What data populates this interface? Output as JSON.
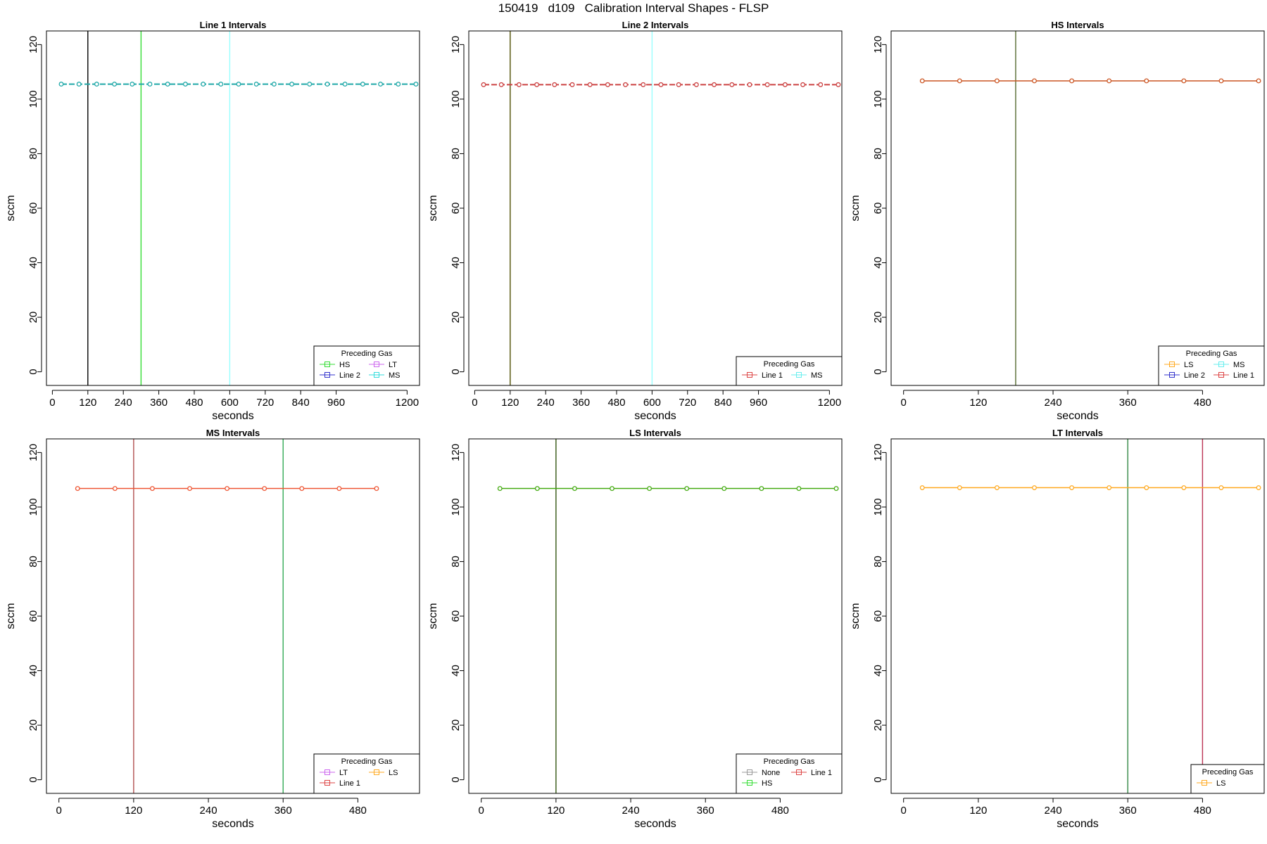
{
  "page_title": "150419   d109   Calibration Interval Shapes - FLSP",
  "chart_data": [
    {
      "type": "line",
      "title": "Line 1 Intervals",
      "xlabel": "seconds",
      "ylabel": "sccm",
      "xlim": [
        -20,
        1242
      ],
      "ylim": [
        -5,
        125
      ],
      "xticks": [
        0,
        120,
        240,
        360,
        480,
        600,
        720,
        840,
        960,
        1200
      ],
      "yticks": [
        0,
        20,
        40,
        60,
        80,
        100,
        120
      ],
      "legend": {
        "title": "Preceding Gas",
        "position": "bottom-right",
        "cols": 2,
        "entries": [
          {
            "label": "HS",
            "color": "#33dd33"
          },
          {
            "label": "LT",
            "color": "#cc66ee"
          },
          {
            "label": "Line 2",
            "color": "#3333cc"
          },
          {
            "label": "MS",
            "color": "#33dddd"
          }
        ]
      },
      "vlines": [
        {
          "x": 120,
          "color": "#000000"
        },
        {
          "x": 300,
          "color": "#33dd33"
        },
        {
          "x": 600,
          "color": "#99ffff"
        }
      ],
      "series": [
        {
          "color": "#1fa8a8",
          "dashed": true,
          "x": [
            30,
            90,
            150,
            210,
            270,
            330,
            390,
            450,
            510,
            570,
            630,
            690,
            750,
            810,
            870,
            930,
            990,
            1050,
            1110,
            1170,
            1230
          ],
          "y": [
            105.5,
            105.5,
            105.5,
            105.5,
            105.5,
            105.5,
            105.5,
            105.5,
            105.5,
            105.5,
            105.5,
            105.5,
            105.5,
            105.5,
            105.5,
            105.5,
            105.5,
            105.5,
            105.5,
            105.5,
            105.5
          ]
        }
      ]
    },
    {
      "type": "line",
      "title": "Line 2 Intervals",
      "xlabel": "seconds",
      "ylabel": "sccm",
      "xlim": [
        -20,
        1242
      ],
      "ylim": [
        -5,
        125
      ],
      "xticks": [
        0,
        120,
        240,
        360,
        480,
        600,
        720,
        840,
        960,
        1200
      ],
      "yticks": [
        0,
        20,
        40,
        60,
        80,
        100,
        120
      ],
      "legend": {
        "title": "Preceding Gas",
        "position": "bottom-right",
        "cols": 2,
        "entries": [
          {
            "label": "Line 1",
            "color": "#dd4444"
          },
          {
            "label": "MS",
            "color": "#66eeee"
          }
        ]
      },
      "vlines": [
        {
          "x": 120,
          "color": "#4d4d00"
        },
        {
          "x": 600,
          "color": "#99ffff"
        }
      ],
      "series": [
        {
          "color": "#cc4444",
          "dashed": true,
          "x": [
            30,
            90,
            150,
            210,
            270,
            330,
            390,
            450,
            510,
            570,
            630,
            690,
            750,
            810,
            870,
            930,
            990,
            1050,
            1110,
            1170,
            1230
          ],
          "y": [
            105.3,
            105.3,
            105.3,
            105.3,
            105.3,
            105.3,
            105.3,
            105.3,
            105.3,
            105.3,
            105.3,
            105.3,
            105.3,
            105.3,
            105.3,
            105.3,
            105.3,
            105.3,
            105.3,
            105.3,
            105.3
          ]
        }
      ]
    },
    {
      "type": "line",
      "title": "HS Intervals",
      "xlabel": "seconds",
      "ylabel": "sccm",
      "xlim": [
        -20,
        579
      ],
      "ylim": [
        -5,
        125
      ],
      "xticks": [
        0,
        120,
        240,
        360,
        480
      ],
      "yticks": [
        0,
        20,
        40,
        60,
        80,
        100,
        120
      ],
      "legend": {
        "title": "Preceding Gas",
        "position": "bottom-right",
        "cols": 2,
        "entries": [
          {
            "label": "LS",
            "color": "#ffaa22"
          },
          {
            "label": "MS",
            "color": "#66eeee"
          },
          {
            "label": "Line 2",
            "color": "#3333cc"
          },
          {
            "label": "Line 1",
            "color": "#dd4444"
          }
        ]
      },
      "vlines": [
        {
          "x": 180,
          "color": "#556b2f"
        }
      ],
      "series": [
        {
          "color": "#cc5522",
          "dashed": false,
          "x": [
            30,
            90,
            150,
            210,
            270,
            330,
            390,
            450,
            510,
            570
          ],
          "y": [
            106.7,
            106.7,
            106.7,
            106.7,
            106.7,
            106.7,
            106.7,
            106.7,
            106.7,
            106.7
          ]
        }
      ]
    },
    {
      "type": "line",
      "title": "MS Intervals",
      "xlabel": "seconds",
      "ylabel": "sccm",
      "xlim": [
        -20,
        579
      ],
      "ylim": [
        -5,
        125
      ],
      "xticks": [
        0,
        120,
        240,
        360,
        480
      ],
      "yticks": [
        0,
        20,
        40,
        60,
        80,
        100,
        120
      ],
      "legend": {
        "title": "Preceding Gas",
        "position": "bottom-right",
        "cols": 2,
        "entries": [
          {
            "label": "LT",
            "color": "#cc66ee"
          },
          {
            "label": "LS",
            "color": "#ffaa22"
          },
          {
            "label": "Line 1",
            "color": "#dd4444"
          }
        ]
      },
      "vlines": [
        {
          "x": 120,
          "color": "#b05050"
        },
        {
          "x": 360,
          "color": "#33aa55"
        }
      ],
      "series": [
        {
          "color": "#ee5533",
          "dashed": false,
          "x": [
            30,
            90,
            150,
            210,
            270,
            330,
            390,
            450,
            510
          ],
          "y": [
            106.8,
            106.8,
            106.8,
            106.8,
            106.8,
            106.8,
            106.8,
            106.8,
            106.8
          ]
        }
      ]
    },
    {
      "type": "line",
      "title": "LS Intervals",
      "xlabel": "seconds",
      "ylabel": "sccm",
      "xlim": [
        -20,
        579
      ],
      "ylim": [
        -5,
        125
      ],
      "xticks": [
        0,
        120,
        240,
        360,
        480
      ],
      "yticks": [
        0,
        20,
        40,
        60,
        80,
        100,
        120
      ],
      "legend": {
        "title": "Preceding Gas",
        "position": "bottom-right",
        "cols": 2,
        "entries": [
          {
            "label": "None",
            "color": "#999999"
          },
          {
            "label": "Line 1",
            "color": "#dd4444"
          },
          {
            "label": "HS",
            "color": "#33dd33"
          }
        ]
      },
      "vlines": [
        {
          "x": 120,
          "color": "#335511"
        }
      ],
      "series": [
        {
          "color": "#44aa11",
          "dashed": false,
          "x": [
            30,
            90,
            150,
            210,
            270,
            330,
            390,
            450,
            510,
            570
          ],
          "y": [
            106.8,
            106.8,
            106.8,
            106.8,
            106.8,
            106.8,
            106.8,
            106.8,
            106.8,
            106.8
          ]
        }
      ]
    },
    {
      "type": "line",
      "title": "LT Intervals",
      "xlabel": "seconds",
      "ylabel": "sccm",
      "xlim": [
        -20,
        579
      ],
      "ylim": [
        -5,
        125
      ],
      "xticks": [
        0,
        120,
        240,
        360,
        480
      ],
      "yticks": [
        0,
        20,
        40,
        60,
        80,
        100,
        120
      ],
      "legend": {
        "title": "Preceding Gas",
        "position": "bottom-right",
        "cols": 1,
        "entries": [
          {
            "label": "LS",
            "color": "#ffaa22"
          }
        ]
      },
      "vlines": [
        {
          "x": 360,
          "color": "#338844"
        },
        {
          "x": 480,
          "color": "#bb3355"
        }
      ],
      "series": [
        {
          "color": "#ffaa22",
          "dashed": false,
          "x": [
            30,
            90,
            150,
            210,
            270,
            330,
            390,
            450,
            510,
            570
          ],
          "y": [
            107.1,
            107.1,
            107.1,
            107.1,
            107.1,
            107.1,
            107.1,
            107.1,
            107.1,
            107.1
          ]
        }
      ]
    }
  ]
}
